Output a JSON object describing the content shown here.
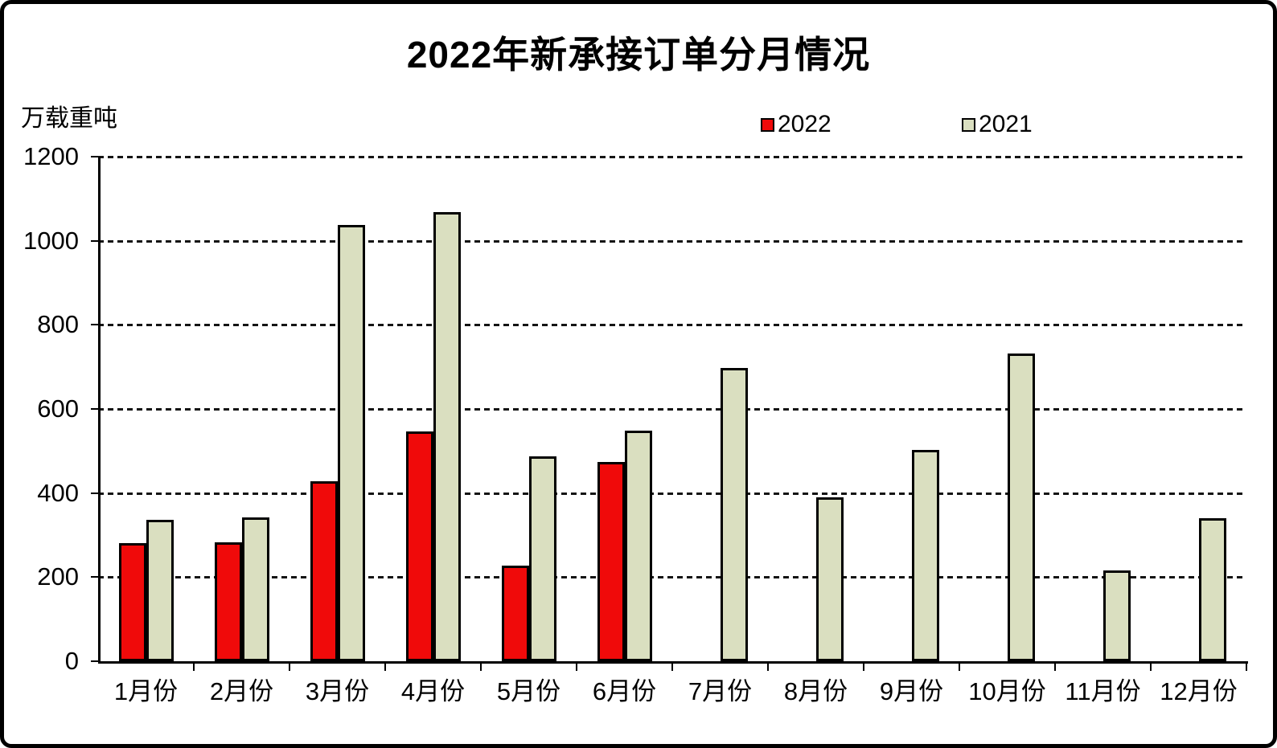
{
  "chart_data": {
    "type": "bar",
    "title": "2022年新承接订单分月情况",
    "unit_label": "万载重吨",
    "categories": [
      "1月份",
      "2月份",
      "3月份",
      "4月份",
      "5月份",
      "6月份",
      "7月份",
      "8月份",
      "9月份",
      "10月份",
      "11月份",
      "12月份"
    ],
    "series": [
      {
        "name": "2022",
        "color": "#f00a0a",
        "values": [
          281,
          283,
          428,
          546,
          228,
          473,
          null,
          null,
          null,
          null,
          null,
          null
        ]
      },
      {
        "name": "2021",
        "color": "#dadfc0",
        "values": [
          337,
          342,
          1038,
          1068,
          488,
          549,
          698,
          389,
          502,
          731,
          215,
          341
        ]
      }
    ],
    "ylim": [
      0,
      1200
    ],
    "ytick_interval": 200,
    "yticks": [
      0,
      200,
      400,
      600,
      800,
      1000,
      1200
    ],
    "grid": "horizontal-dashed",
    "legend_position": "top-right",
    "axis_color": "#000000",
    "background_color": "#ffffff"
  }
}
